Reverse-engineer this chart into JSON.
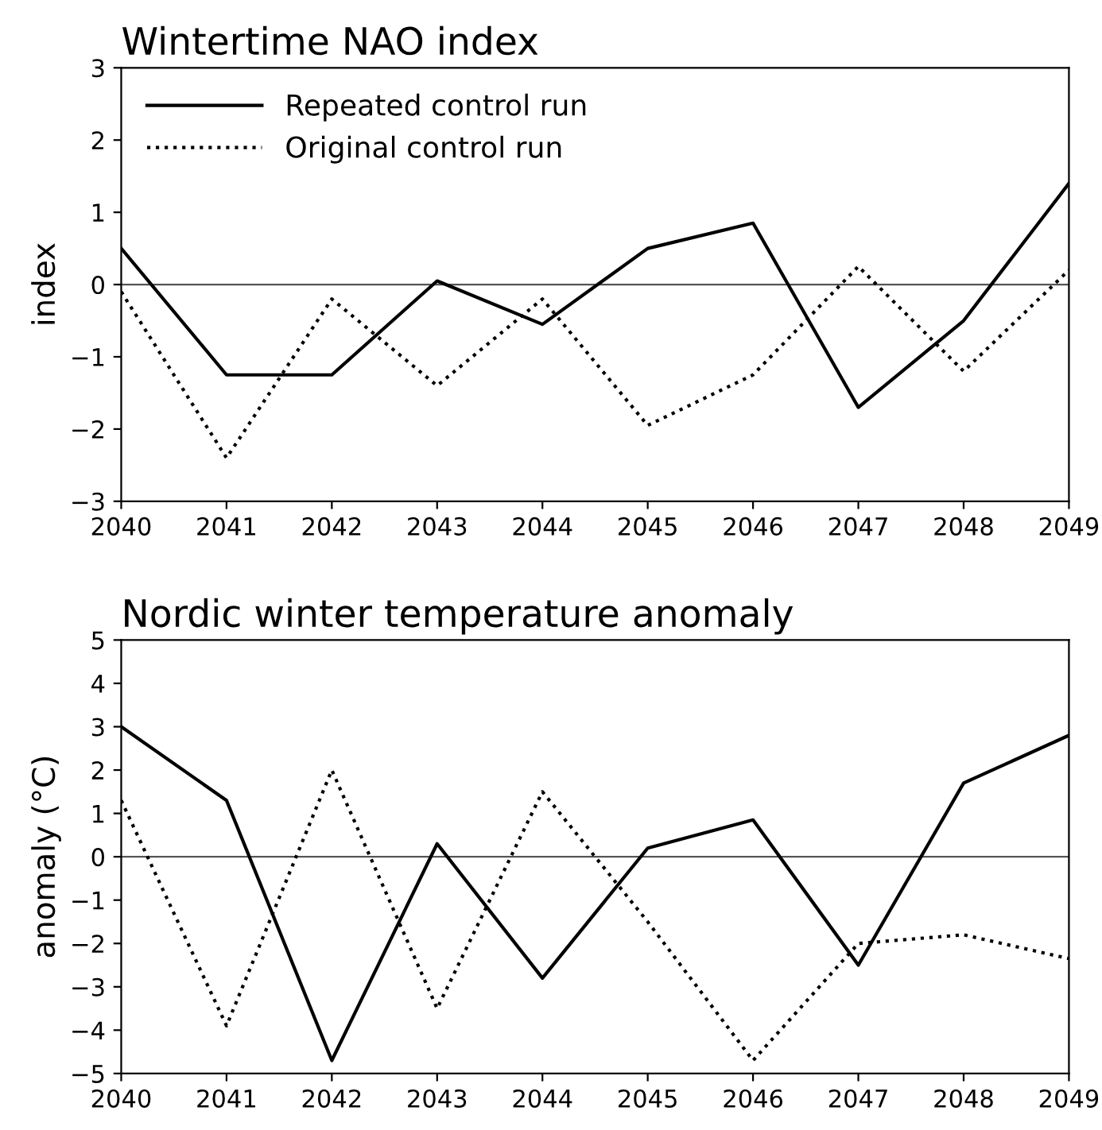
{
  "chart_data": [
    {
      "type": "line",
      "title": "Wintertime NAO index",
      "ylabel": "index",
      "x": [
        2040,
        2041,
        2042,
        2043,
        2044,
        2045,
        2046,
        2047,
        2048,
        2049
      ],
      "xlim": [
        2040,
        2049
      ],
      "xticks": [
        2040,
        2041,
        2042,
        2043,
        2044,
        2045,
        2046,
        2047,
        2048,
        2049
      ],
      "ylim": [
        -3,
        3
      ],
      "yticks": [
        -3,
        -2,
        -1,
        0,
        1,
        2,
        3
      ],
      "grid": false,
      "legend": "top left",
      "marker": "none",
      "series": [
        {
          "name": "Repeated control run",
          "color": "#000000",
          "line_style": "solid",
          "values": [
            0.5,
            -1.25,
            -1.25,
            0.05,
            -0.55,
            0.5,
            0.85,
            -1.7,
            -0.5,
            1.4
          ]
        },
        {
          "name": "Original control run",
          "color": "#000000",
          "line_style": "dotted",
          "values": [
            -0.1,
            -2.4,
            -0.2,
            -1.4,
            -0.2,
            -1.95,
            -1.25,
            0.25,
            -1.2,
            0.2
          ]
        }
      ],
      "ref_lines": [
        {
          "axis": "y",
          "value": 0,
          "color": "#555555"
        }
      ]
    },
    {
      "type": "line",
      "title": "Nordic winter temperature anomaly",
      "ylabel": "anomaly (°C)",
      "x": [
        2040,
        2041,
        2042,
        2043,
        2044,
        2045,
        2046,
        2047,
        2048,
        2049
      ],
      "xlim": [
        2040,
        2049
      ],
      "xticks": [
        2040,
        2041,
        2042,
        2043,
        2044,
        2045,
        2046,
        2047,
        2048,
        2049
      ],
      "ylim": [
        -5,
        5
      ],
      "yticks": [
        -5,
        -4,
        -3,
        -2,
        -1,
        0,
        1,
        2,
        3,
        4,
        5
      ],
      "grid": false,
      "legend": false,
      "marker": "none",
      "series": [
        {
          "color": "#000000",
          "line_style": "solid",
          "values": [
            3.0,
            1.3,
            -4.7,
            0.3,
            -2.8,
            0.2,
            0.85,
            -2.5,
            1.7,
            2.8
          ]
        },
        {
          "color": "#000000",
          "line_style": "dotted",
          "values": [
            1.3,
            -3.9,
            2.0,
            -3.5,
            1.5,
            -1.5,
            -4.7,
            -2.0,
            -1.8,
            -2.35
          ]
        }
      ],
      "ref_lines": [
        {
          "axis": "y",
          "value": 0,
          "color": "#555555"
        }
      ]
    }
  ]
}
